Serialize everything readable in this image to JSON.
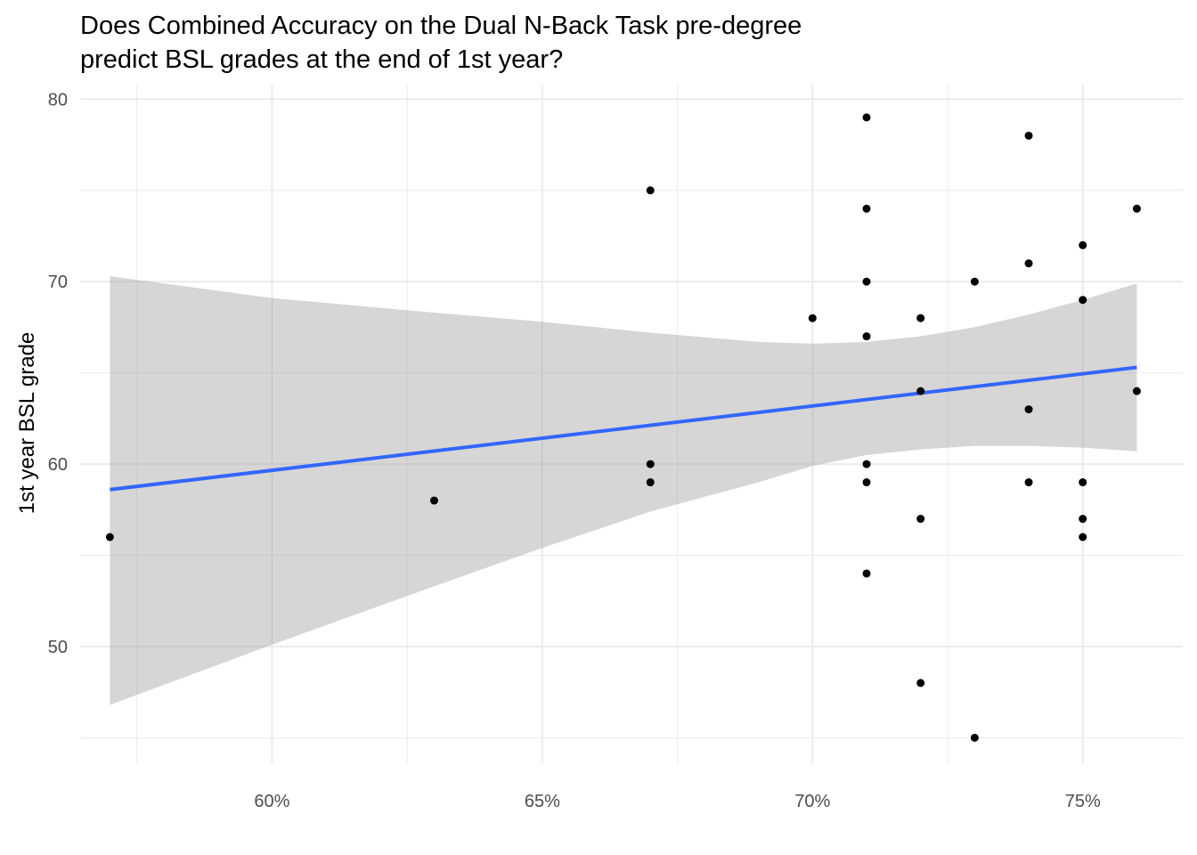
{
  "chart_data": {
    "type": "scatter",
    "title": "Does Combined Accuracy on the Dual N-Back Task pre-degree\npredict BSL grades at the end of 1st year?",
    "xlabel": "",
    "ylabel": "1st year BSL grade",
    "xlim": [
      0.5645,
      0.7685
    ],
    "ylim": [
      43.6,
      80.8
    ],
    "x_ticks": [
      0.6,
      0.65,
      0.7,
      0.75
    ],
    "x_tick_labels": [
      "60%",
      "65%",
      "70%",
      "75%"
    ],
    "x_minor_ticks": [
      0.575,
      0.625,
      0.675,
      0.725
    ],
    "y_ticks": [
      50,
      60,
      70,
      80
    ],
    "y_tick_labels": [
      "50",
      "60",
      "70",
      "80"
    ],
    "y_minor_ticks": [
      45,
      55,
      65,
      75
    ],
    "grid": true,
    "points": [
      {
        "x": 0.57,
        "y": 56
      },
      {
        "x": 0.63,
        "y": 58
      },
      {
        "x": 0.67,
        "y": 75
      },
      {
        "x": 0.67,
        "y": 60
      },
      {
        "x": 0.67,
        "y": 59
      },
      {
        "x": 0.7,
        "y": 68
      },
      {
        "x": 0.71,
        "y": 79
      },
      {
        "x": 0.71,
        "y": 74
      },
      {
        "x": 0.71,
        "y": 70
      },
      {
        "x": 0.71,
        "y": 67
      },
      {
        "x": 0.71,
        "y": 60
      },
      {
        "x": 0.71,
        "y": 59
      },
      {
        "x": 0.71,
        "y": 54
      },
      {
        "x": 0.72,
        "y": 68
      },
      {
        "x": 0.72,
        "y": 64
      },
      {
        "x": 0.72,
        "y": 57
      },
      {
        "x": 0.72,
        "y": 48
      },
      {
        "x": 0.73,
        "y": 70
      },
      {
        "x": 0.73,
        "y": 45
      },
      {
        "x": 0.74,
        "y": 78
      },
      {
        "x": 0.74,
        "y": 71
      },
      {
        "x": 0.74,
        "y": 63
      },
      {
        "x": 0.74,
        "y": 59
      },
      {
        "x": 0.75,
        "y": 72
      },
      {
        "x": 0.75,
        "y": 69
      },
      {
        "x": 0.75,
        "y": 59
      },
      {
        "x": 0.75,
        "y": 57
      },
      {
        "x": 0.75,
        "y": 56
      },
      {
        "x": 0.76,
        "y": 74
      },
      {
        "x": 0.76,
        "y": 64
      }
    ],
    "fit_line": {
      "method": "linear",
      "x": [
        0.57,
        0.76
      ],
      "y": [
        58.6,
        65.3
      ]
    },
    "confidence_band": {
      "x": [
        0.57,
        0.6,
        0.63,
        0.65,
        0.67,
        0.69,
        0.7,
        0.71,
        0.72,
        0.73,
        0.74,
        0.75,
        0.76
      ],
      "upper": [
        70.3,
        69.1,
        68.3,
        67.8,
        67.2,
        66.7,
        66.6,
        66.7,
        67.0,
        67.5,
        68.2,
        69.0,
        69.9
      ],
      "lower": [
        46.8,
        50.1,
        53.3,
        55.4,
        57.4,
        59.0,
        59.9,
        60.5,
        60.8,
        61.0,
        61.0,
        60.9,
        60.7
      ]
    },
    "colors": {
      "points": "#000000",
      "fit_line": "#3366FF",
      "band": "#999999",
      "grid": "#EBEBEB",
      "tick_text": "#4D4D4D"
    }
  }
}
